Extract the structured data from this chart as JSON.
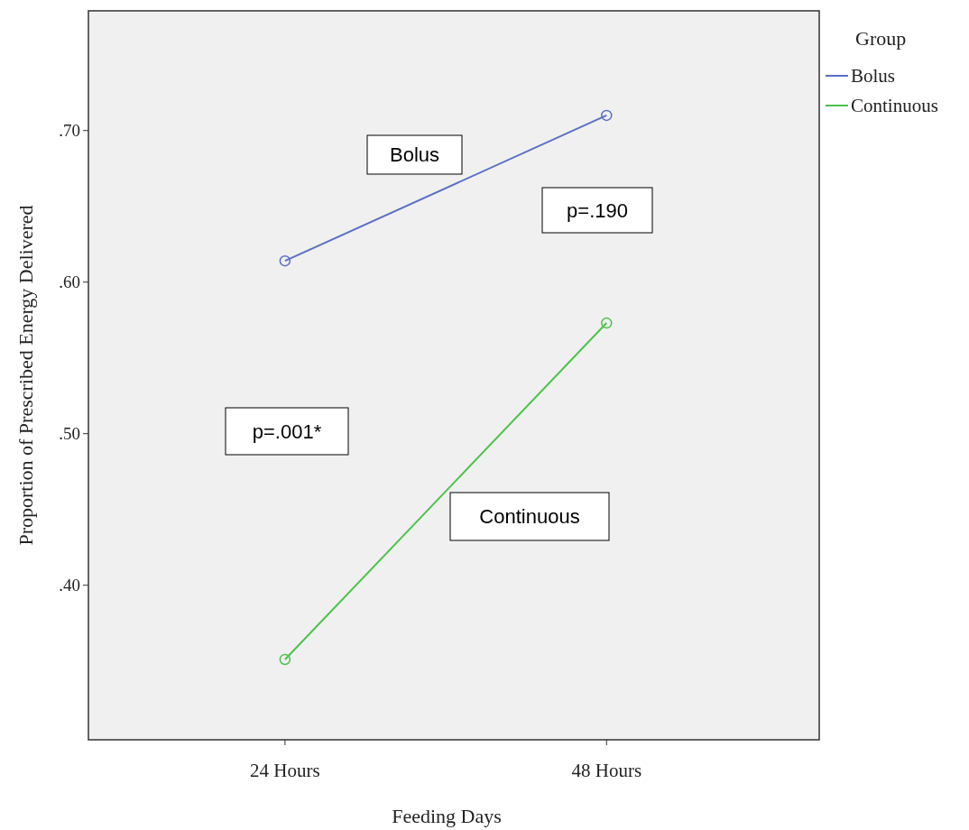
{
  "chart_data": {
    "type": "line",
    "xlabel": "Feeding Days",
    "ylabel": "Proportion of Prescribed Energy Delivered",
    "legend_title": "Group",
    "categories": [
      "24 Hours",
      "48 Hours"
    ],
    "series": [
      {
        "name": "Bolus",
        "color": "#5a6fc4",
        "values": [
          0.614,
          0.71
        ]
      },
      {
        "name": "Continuous",
        "color": "#4cc24c",
        "values": [
          0.351,
          0.573
        ]
      }
    ],
    "ylim": [
      0.298,
      0.779
    ],
    "yticks": [
      {
        "value": 0.4,
        "label": ".40"
      },
      {
        "value": 0.5,
        "label": ".50"
      },
      {
        "value": 0.6,
        "label": ".60"
      },
      {
        "value": 0.7,
        "label": ".70"
      }
    ],
    "marker": "circle",
    "legend": "top right",
    "grid": false,
    "annotations": [
      "Bolus",
      "p=.190",
      "p=.001*",
      "Continuous"
    ]
  }
}
